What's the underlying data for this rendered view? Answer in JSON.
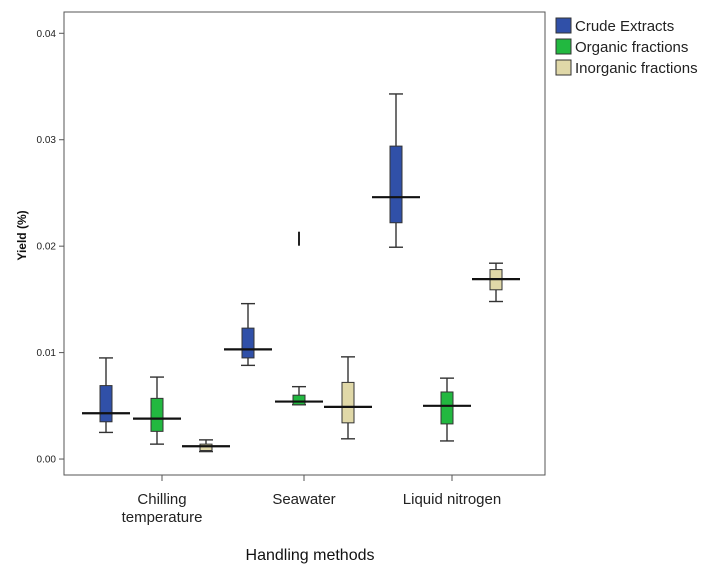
{
  "chart_data": {
    "type": "boxplot",
    "xlabel": "Handling methods",
    "ylabel": "Yield (%)",
    "ylim": [
      -0.0015,
      0.042
    ],
    "yticks": [
      "0.00",
      "0.01",
      "0.02",
      "0.03",
      "0.04"
    ],
    "ytick_values": [
      0.0,
      0.01,
      0.02,
      0.03,
      0.04
    ],
    "categories": [
      [
        "Chilling",
        "temperature"
      ],
      [
        "Seawater"
      ],
      [
        "Liquid nitrogen"
      ]
    ],
    "legend_position": "outside-top-right",
    "grid": false,
    "series": [
      {
        "name": "Crude Extracts",
        "color": "#3050a8",
        "boxes": [
          {
            "min": 0.0025,
            "q1": 0.0035,
            "median": 0.0043,
            "q3": 0.0069,
            "max": 0.0095
          },
          {
            "min": 0.0088,
            "q1": 0.0095,
            "median": 0.0103,
            "q3": 0.0123,
            "max": 0.0146
          },
          {
            "min": 0.0199,
            "q1": 0.0222,
            "median": 0.0246,
            "q3": 0.0294,
            "max": 0.0343
          }
        ]
      },
      {
        "name": "Organic fractions",
        "color": "#22b840",
        "boxes": [
          {
            "min": 0.0014,
            "q1": 0.0026,
            "median": 0.0038,
            "q3": 0.0057,
            "max": 0.0077
          },
          {
            "min": 0.0051,
            "q1": 0.0051,
            "median": 0.0054,
            "q3": 0.006,
            "max": 0.0068,
            "outliers": [
              0.0207
            ]
          },
          {
            "min": 0.0017,
            "q1": 0.0033,
            "median": 0.005,
            "q3": 0.0063,
            "max": 0.0076
          }
        ]
      },
      {
        "name": "Inorganic fractions",
        "color": "#e0d8a8",
        "boxes": [
          {
            "min": 0.0007,
            "q1": 0.0008,
            "median": 0.0012,
            "q3": 0.0014,
            "max": 0.0018
          },
          {
            "min": 0.0019,
            "q1": 0.0034,
            "median": 0.0049,
            "q3": 0.0072,
            "max": 0.0096
          },
          {
            "min": 0.0148,
            "q1": 0.0159,
            "median": 0.0169,
            "q3": 0.0178,
            "max": 0.0184
          }
        ]
      }
    ]
  }
}
